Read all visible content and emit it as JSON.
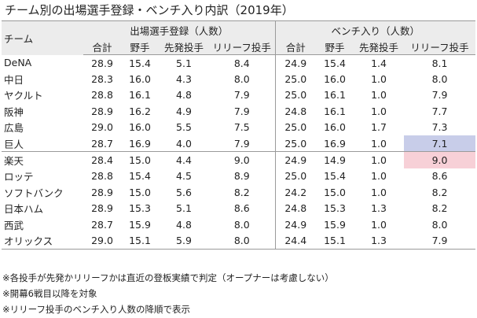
{
  "title": "チーム別の出場選手登録・ベンチ入り内訳（2019年）",
  "header": {
    "team_label": "チーム",
    "group1": "出場選手登録（人数）",
    "group2": "ベンチ入り（人数）",
    "cols1": [
      "合計",
      "野手",
      "先発投手",
      "リリーフ投手"
    ],
    "cols2": [
      "合計",
      "野手",
      "先発投手",
      "リリーフ投手"
    ]
  },
  "rows": [
    {
      "team": "DeNA",
      "reg": [
        "28.9",
        "15.4",
        "5.1",
        "8.4"
      ],
      "bench": [
        "24.9",
        "15.4",
        "1.4",
        "8.1"
      ]
    },
    {
      "team": "中日",
      "reg": [
        "28.3",
        "16.0",
        "4.3",
        "8.0"
      ],
      "bench": [
        "25.0",
        "16.0",
        "1.0",
        "8.0"
      ]
    },
    {
      "team": "ヤクルト",
      "reg": [
        "28.8",
        "16.1",
        "4.8",
        "7.9"
      ],
      "bench": [
        "25.0",
        "16.1",
        "1.0",
        "7.9"
      ]
    },
    {
      "team": "阪神",
      "reg": [
        "28.9",
        "16.2",
        "4.9",
        "7.9"
      ],
      "bench": [
        "24.8",
        "16.1",
        "1.0",
        "7.7"
      ]
    },
    {
      "team": "広島",
      "reg": [
        "29.0",
        "16.0",
        "5.5",
        "7.5"
      ],
      "bench": [
        "25.0",
        "16.0",
        "1.7",
        "7.3"
      ]
    },
    {
      "team": "巨人",
      "reg": [
        "28.7",
        "16.9",
        "4.0",
        "7.9"
      ],
      "bench": [
        "25.0",
        "16.9",
        "1.0",
        "7.1"
      ]
    },
    {
      "team": "楽天",
      "reg": [
        "28.4",
        "15.0",
        "4.4",
        "9.0"
      ],
      "bench": [
        "24.9",
        "14.9",
        "1.0",
        "9.0"
      ]
    },
    {
      "team": "ロッテ",
      "reg": [
        "28.8",
        "15.4",
        "4.5",
        "8.9"
      ],
      "bench": [
        "25.0",
        "15.4",
        "1.0",
        "8.6"
      ]
    },
    {
      "team": "ソフトバンク",
      "reg": [
        "28.9",
        "15.0",
        "5.6",
        "8.2"
      ],
      "bench": [
        "24.2",
        "15.0",
        "1.0",
        "8.2"
      ]
    },
    {
      "team": "日本ハム",
      "reg": [
        "28.9",
        "15.3",
        "5.1",
        "8.6"
      ],
      "bench": [
        "24.8",
        "15.3",
        "1.3",
        "8.2"
      ]
    },
    {
      "team": "西武",
      "reg": [
        "28.7",
        "15.9",
        "4.8",
        "8.0"
      ],
      "bench": [
        "24.9",
        "15.9",
        "1.0",
        "8.0"
      ]
    },
    {
      "team": "オリックス",
      "reg": [
        "29.0",
        "15.1",
        "5.9",
        "8.0"
      ],
      "bench": [
        "24.4",
        "15.1",
        "1.3",
        "7.9"
      ]
    }
  ],
  "notes": [
    "※各投手が先発かリリーフかは直近の登板実績で判定（オープナーは考慮しない）",
    "※開幕6戦目以降を対象",
    "※リリーフ投手のベンチ入り人数の降順で表示"
  ],
  "colors": {
    "highlight_min": "#c8cde9",
    "highlight_max": "#f7d0d7"
  }
}
